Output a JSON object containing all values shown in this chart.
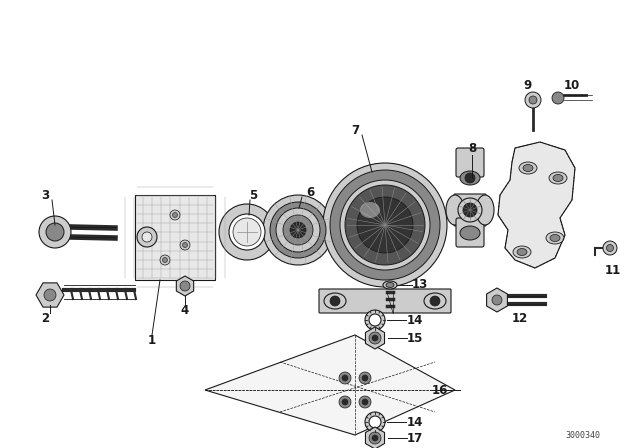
{
  "bg_color": "#ffffff",
  "line_color": "#1a1a1a",
  "dark_color": "#2a2a2a",
  "mid_color": "#888888",
  "light_color": "#cccccc",
  "very_light": "#e8e8e8",
  "watermark": "3000340",
  "fig_width": 6.4,
  "fig_height": 4.48,
  "dpi": 100,
  "xlim": [
    0,
    640
  ],
  "ylim": [
    0,
    448
  ]
}
